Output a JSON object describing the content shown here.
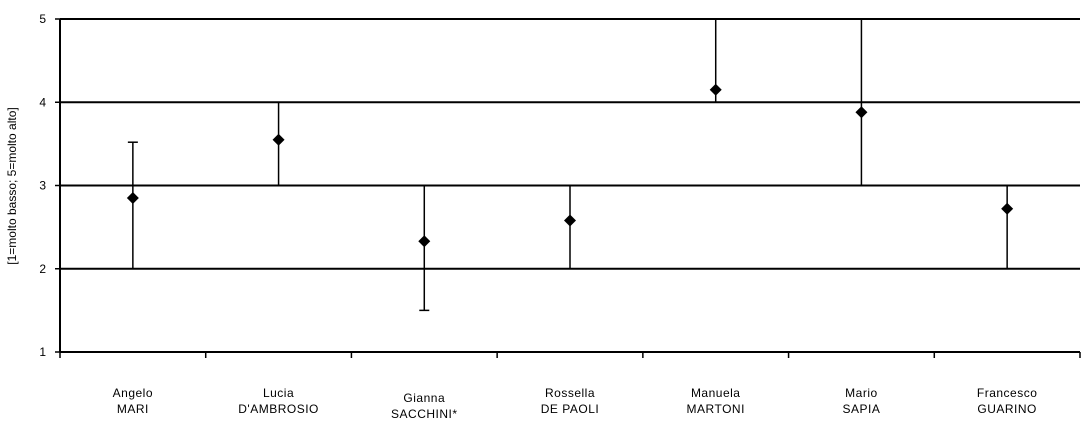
{
  "chart_data": {
    "type": "scatter",
    "title": "",
    "xlabel": "",
    "ylabel": "[1=molto basso; 5=molto alto]",
    "ylim": [
      1,
      5
    ],
    "yticks": [
      "1",
      "2",
      "3",
      "4",
      "5"
    ],
    "grid": true,
    "categories": [
      {
        "line1": "Angelo",
        "line2": "MARI"
      },
      {
        "line1": "Lucia",
        "line2": "D'AMBROSIO"
      },
      {
        "line1": "Gianna",
        "line2": "SACCHINI*"
      },
      {
        "line1": "Rossella",
        "line2": "DE PAOLI"
      },
      {
        "line1": "Manuela",
        "line2": "MARTONI"
      },
      {
        "line1": "Mario",
        "line2": "SAPIA"
      },
      {
        "line1": "Francesco",
        "line2": "GUARINO"
      }
    ],
    "series": [
      {
        "values": [
          2.85,
          3.55,
          2.33,
          2.58,
          4.15,
          3.88,
          2.72
        ],
        "low": [
          2.0,
          3.0,
          1.5,
          2.0,
          4.0,
          3.0,
          2.0
        ],
        "high": [
          3.52,
          4.0,
          3.0,
          3.0,
          5.0,
          5.0,
          3.0
        ]
      }
    ],
    "colors": {
      "marker": "#000000",
      "grid": "#000000"
    }
  }
}
